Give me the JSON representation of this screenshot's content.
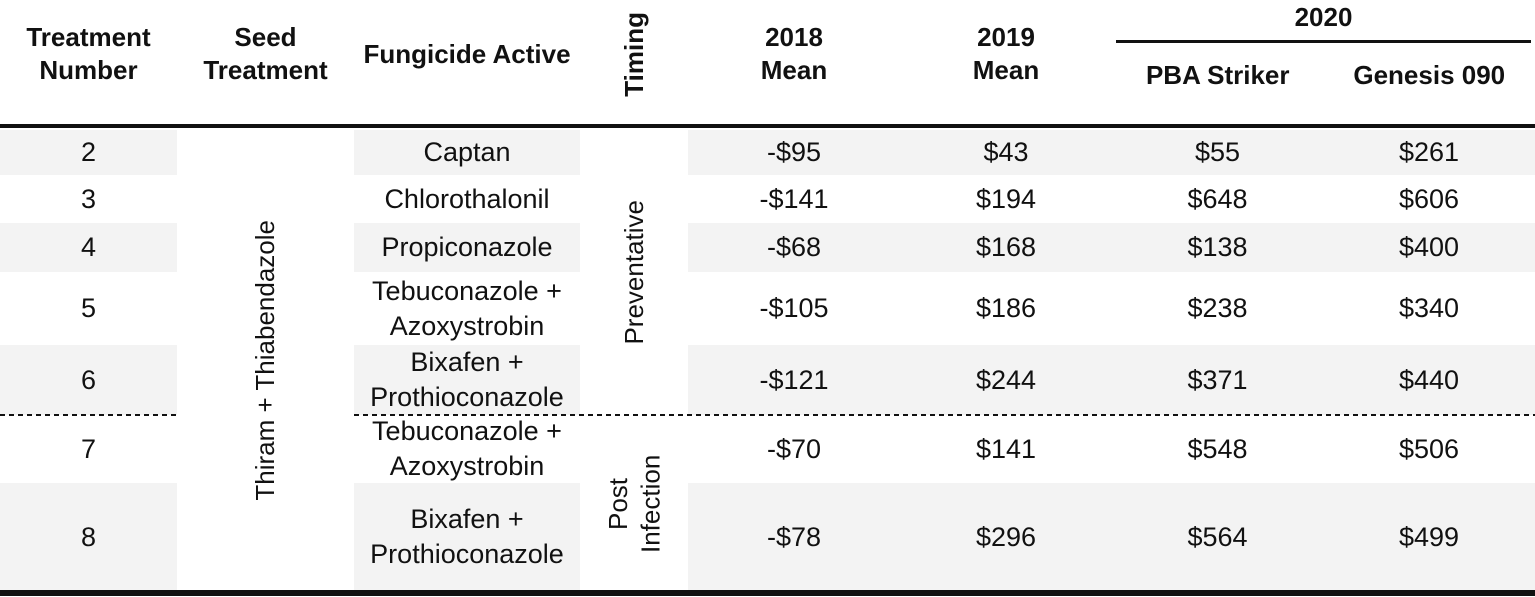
{
  "table": {
    "header": {
      "treatment_number": "Treatment\nNumber",
      "seed_treatment": "Seed\nTreatment",
      "fungicide_active": "Fungicide Active",
      "timing": "Timing",
      "mean_2018": "2018\nMean",
      "mean_2019": "2019\nMean",
      "year_2020": "2020",
      "pba_striker": "PBA Striker",
      "genesis_090": "Genesis 090"
    },
    "seed_treatment_value": "Thiram + Thiabendazole",
    "timing_groups": {
      "preventative": "Preventative",
      "post_infection": "Post Infection"
    },
    "rows": [
      {
        "number": "2",
        "fungicide": "Captan",
        "mean2018": "-$95",
        "mean2019": "$43",
        "pba_striker": "$55",
        "genesis_090": "$261"
      },
      {
        "number": "3",
        "fungicide": "Chlorothalonil",
        "mean2018": "-$141",
        "mean2019": "$194",
        "pba_striker": "$648",
        "genesis_090": "$606"
      },
      {
        "number": "4",
        "fungicide": "Propiconazole",
        "mean2018": "-$68",
        "mean2019": "$168",
        "pba_striker": "$138",
        "genesis_090": "$400"
      },
      {
        "number": "5",
        "fungicide": "Tebuconazole + Azoxystrobin",
        "mean2018": "-$105",
        "mean2019": "$186",
        "pba_striker": "$238",
        "genesis_090": "$340"
      },
      {
        "number": "6",
        "fungicide": "Bixafen + Prothioconazole",
        "mean2018": "-$121",
        "mean2019": "$244",
        "pba_striker": "$371",
        "genesis_090": "$440"
      },
      {
        "number": "7",
        "fungicide": "Tebuconazole + Azoxystrobin",
        "mean2018": "-$70",
        "mean2019": "$141",
        "pba_striker": "$548",
        "genesis_090": "$506"
      },
      {
        "number": "8",
        "fungicide": "Bixafen + Prothioconazole",
        "mean2018": "-$78",
        "mean2019": "$296",
        "pba_striker": "$564",
        "genesis_090": "$499"
      }
    ],
    "colors": {
      "stripe": "#f3f3f3",
      "rule": "#111111"
    }
  }
}
